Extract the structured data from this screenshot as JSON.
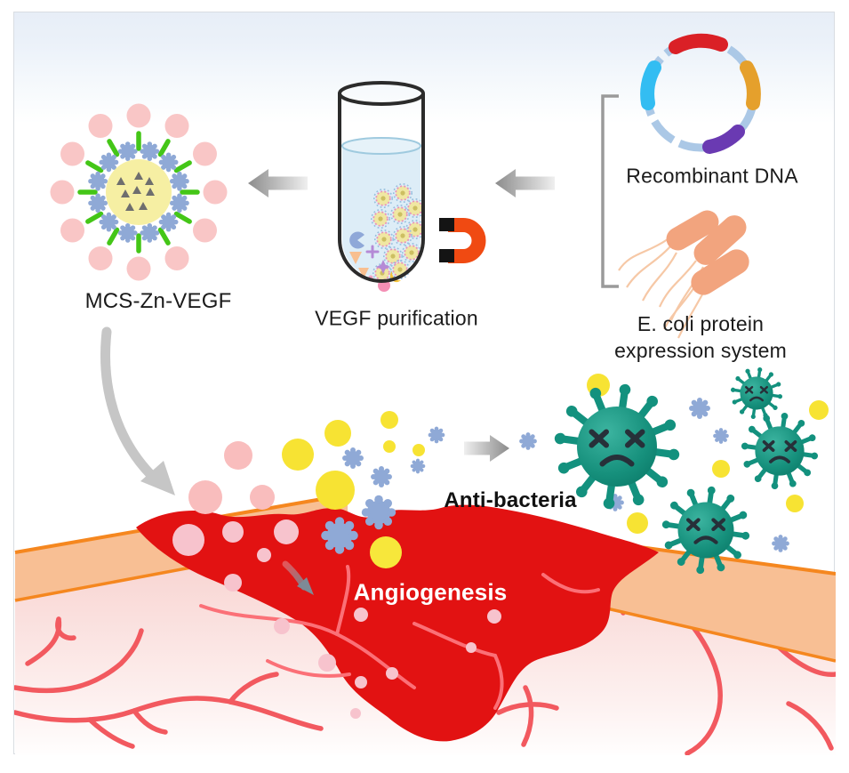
{
  "figure_labels": {
    "recombinant_dna": "Recombinant DNA",
    "ecoli_line1": "E. coli protein",
    "ecoli_line2": "expression system",
    "vegf_purification": "VEGF purification",
    "mcs_zn_vegf": "MCS-Zn-VEGF",
    "anti_bacteria": "Anti-bacteria",
    "angiogenesis": "Angiogenesis"
  },
  "icons": {
    "plasmid": "plasmid-ring-icon",
    "ecoli": "ecoli-bacteria-icon",
    "test_tube": "test-tube-icon",
    "magnet": "horseshoe-magnet-icon",
    "nanoparticle": "mcs-zn-vegf-nanoparticle-icon",
    "dead_bacteria": "dead-bacteria-icon",
    "process_arrow": "gray-arrow-icon",
    "wound": "wound-illustration",
    "skin": "skin-tissue-illustration"
  },
  "colors": {
    "plasmid_ring": "#abc8e6",
    "plasmid_segment_red": "#da2026",
    "plasmid_segment_blue": "#33bdf2",
    "plasmid_segment_orange": "#e5a02c",
    "plasmid_segment_purple": "#6a3ab2",
    "ecoli_body": "#f2a47e",
    "magnet_orange": "#f04a12",
    "tube_water": "#ddedf7",
    "nanoparticle_core_yellow": "#f6efa3",
    "nanoparticle_gear_blue": "#8fa9d6",
    "linker_green": "#44c617",
    "vegf_ball_pink": "#f9c6c6",
    "bacteria_teal": "#189582",
    "wound_red": "#e21212",
    "skin_peach": "#f8bf94",
    "skin_border_orange": "#f5871f",
    "tissue_pink": "#f7cdc9",
    "vessel_red": "#f2595f",
    "scatter_pink": "#f9bdbd",
    "scatter_yellow": "#f7e333",
    "scatter_blue": "#8aa6d4",
    "arrow_gray": "#c6c6c6"
  }
}
